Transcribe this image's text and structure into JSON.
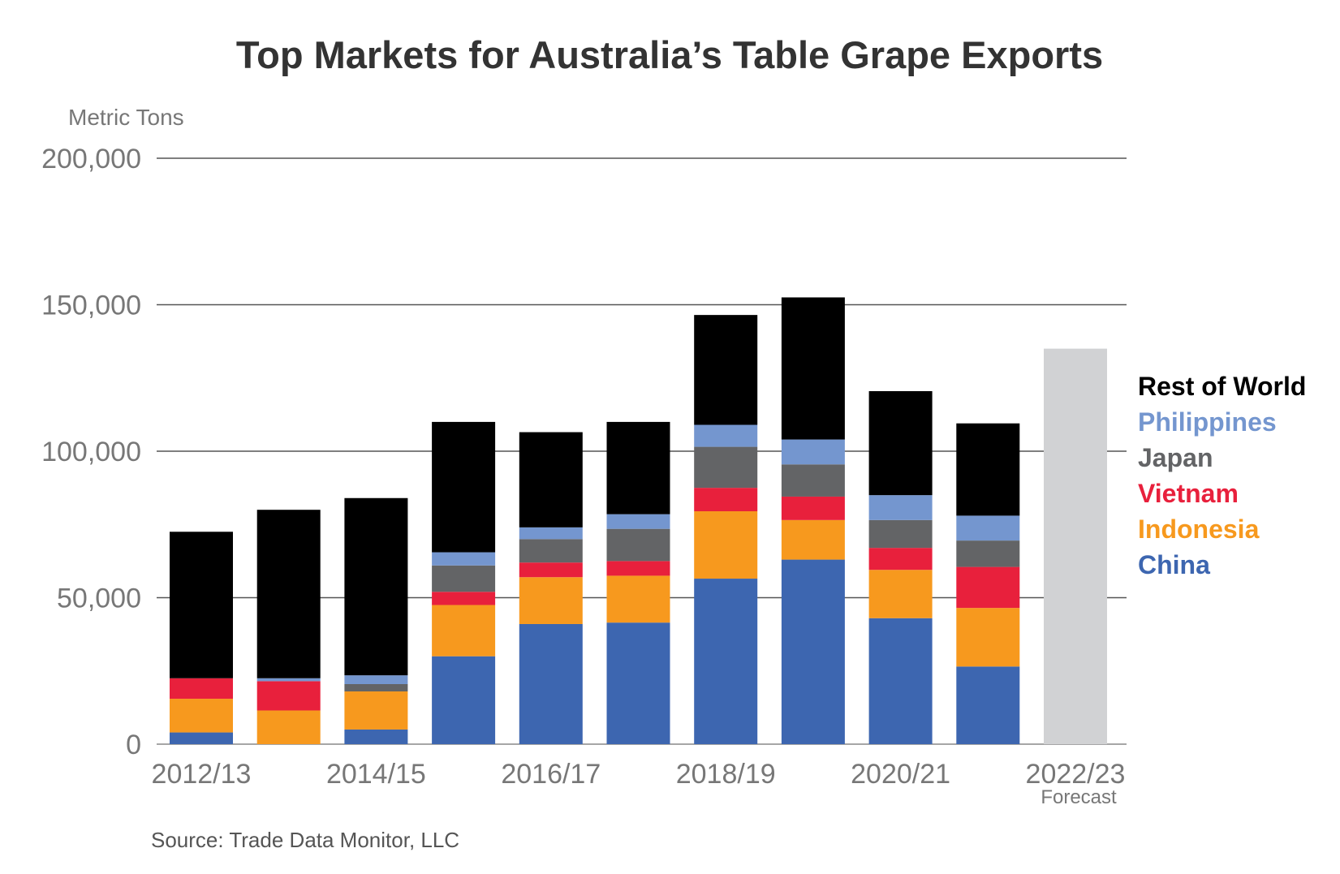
{
  "chart_data": {
    "type": "bar",
    "stacked": true,
    "title": "Top Markets for Australia’s Table Grape Exports",
    "ylabel": "Metric Tons",
    "ylim": [
      0,
      200000
    ],
    "yticks": [
      0,
      50000,
      100000,
      150000,
      200000
    ],
    "ytick_labels": [
      "0",
      "50,000",
      "100,000",
      "150,000",
      "200,000"
    ],
    "grid": true,
    "legend_position": "right",
    "categories": [
      "2012/13",
      "2013/14",
      "2014/15",
      "2015/16",
      "2016/17",
      "2017/18",
      "2018/19",
      "2019/20",
      "2020/21",
      "2021/22",
      "2022/23"
    ],
    "x_tick_labels": [
      "2012/13",
      "",
      "2014/15",
      "",
      "2016/17",
      "",
      "2018/19",
      "",
      "2020/21",
      "",
      "2022/23"
    ],
    "x_note": {
      "category": "2022/23",
      "text": "Forecast"
    },
    "series": [
      {
        "name": "China",
        "color": "#3d66b0",
        "values": [
          4000,
          0,
          5000,
          30000,
          41000,
          41500,
          56500,
          63000,
          43000,
          26500,
          null
        ]
      },
      {
        "name": "Indonesia",
        "color": "#f7991e",
        "values": [
          11500,
          11500,
          13000,
          17500,
          16000,
          16000,
          23000,
          13500,
          16500,
          20000,
          null
        ]
      },
      {
        "name": "Vietnam",
        "color": "#e8203c",
        "values": [
          7000,
          10000,
          0,
          4500,
          5000,
          5000,
          8000,
          8000,
          7500,
          14000,
          null
        ]
      },
      {
        "name": "Japan",
        "color": "#636466",
        "values": [
          0,
          0,
          2500,
          9000,
          8000,
          11000,
          14000,
          11000,
          9500,
          9000,
          null
        ]
      },
      {
        "name": "Philippines",
        "color": "#7496cf",
        "values": [
          0,
          1000,
          3000,
          4500,
          4000,
          5000,
          7500,
          8500,
          8500,
          8500,
          null
        ]
      },
      {
        "name": "Rest of World",
        "color": "#000000",
        "values": [
          50000,
          57500,
          60500,
          44500,
          32500,
          31500,
          37500,
          48500,
          35500,
          31500,
          null
        ]
      }
    ],
    "forecast": {
      "category": "2022/23",
      "value": 135000,
      "color": "#d1d2d4"
    },
    "legend_order": [
      "Rest of World",
      "Philippines",
      "Japan",
      "Vietnam",
      "Indonesia",
      "China"
    ]
  },
  "source": "Source: Trade Data Monitor, LLC"
}
